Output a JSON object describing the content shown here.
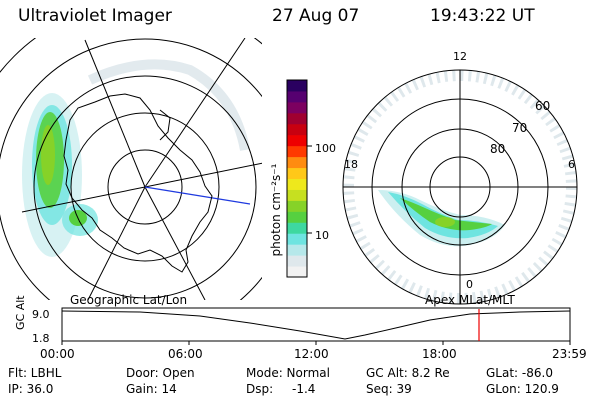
{
  "header": {
    "title": "Ultraviolet Imager",
    "date": "27 Aug 07",
    "time": "19:43:22 UT"
  },
  "colorbar": {
    "unit_label": "photon cm⁻²s⁻¹",
    "ticks": [
      "100",
      "10"
    ],
    "colors": [
      "#f2f2f2",
      "#dfe8ec",
      "#b6e8ea",
      "#6ee4e0",
      "#3ed8a0",
      "#56d040",
      "#86d228",
      "#c6e020",
      "#eee81c",
      "#ffc818",
      "#ff8c10",
      "#ff3a00",
      "#ee0000",
      "#c80010",
      "#a00030",
      "#7c0060",
      "#560070",
      "#2a0060"
    ]
  },
  "left_map": {
    "caption": "Geographic Lat/Lon"
  },
  "right_map": {
    "caption": "Apex MLat/MLT",
    "mlt_labels": {
      "top": "12",
      "left": "18",
      "right": "6",
      "bottom": "0"
    },
    "lat_labels": [
      "60",
      "70",
      "80"
    ]
  },
  "timeline": {
    "ylabel": "GC Alt",
    "yticks": [
      "9.0",
      "1.8"
    ],
    "xticks": [
      "00:00",
      "06:00",
      "12:00",
      "18:00",
      "23:59"
    ]
  },
  "info": {
    "flt": "Flt: LBHL",
    "ip": "IP: 36.0",
    "door": "Door: Open",
    "gain": "Gain: 14",
    "mode": "Mode: Normal",
    "dsp_label": "Dsp:",
    "dsp_value": "-1.4",
    "gcalt": "GC Alt: 8.2 Re",
    "seq": "Seq: 39",
    "glat": "GLat: -86.0",
    "glon": "GLon: 120.9"
  }
}
